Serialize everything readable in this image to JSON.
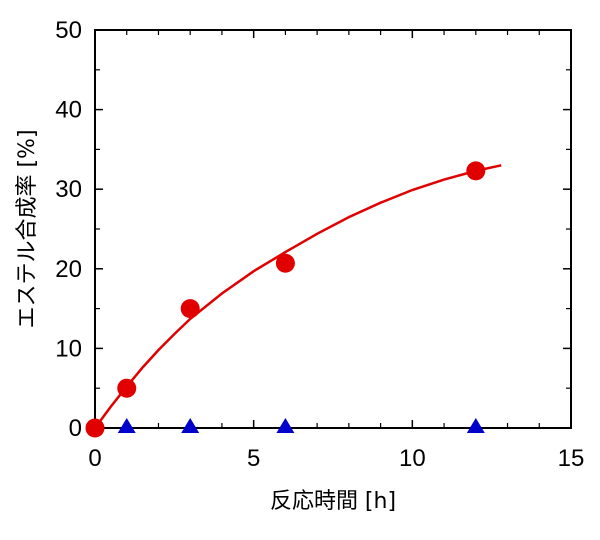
{
  "chart_data": {
    "type": "scatter",
    "xlabel": "反応時間 [h]",
    "ylabel": "エステル合成率 [%]",
    "xlim": [
      0,
      15
    ],
    "ylim": [
      0,
      50
    ],
    "xticks": [
      0,
      5,
      10,
      15
    ],
    "yticks": [
      0,
      10,
      20,
      30,
      40,
      50
    ],
    "grid": false,
    "series": [
      {
        "marker": "circle",
        "color": "#e00000",
        "x": [
          0,
          1,
          3,
          6,
          12
        ],
        "y": [
          0,
          5.0,
          15.0,
          20.7,
          32.3
        ]
      },
      {
        "marker": "triangle",
        "color": "#0000cc",
        "x": [
          1,
          3,
          6,
          12
        ],
        "y": [
          0,
          0,
          0,
          0
        ]
      }
    ],
    "fit_line": {
      "color": "#e00000",
      "x": [
        0,
        0.5,
        1,
        1.5,
        2,
        2.5,
        3,
        4,
        5,
        6,
        7,
        8,
        9,
        10,
        11,
        12,
        12.8
      ],
      "y": [
        0,
        2.7,
        5.2,
        7.6,
        9.8,
        11.8,
        13.7,
        16.9,
        19.7,
        22.1,
        24.4,
        26.5,
        28.3,
        29.9,
        31.2,
        32.3,
        33.0
      ]
    }
  }
}
